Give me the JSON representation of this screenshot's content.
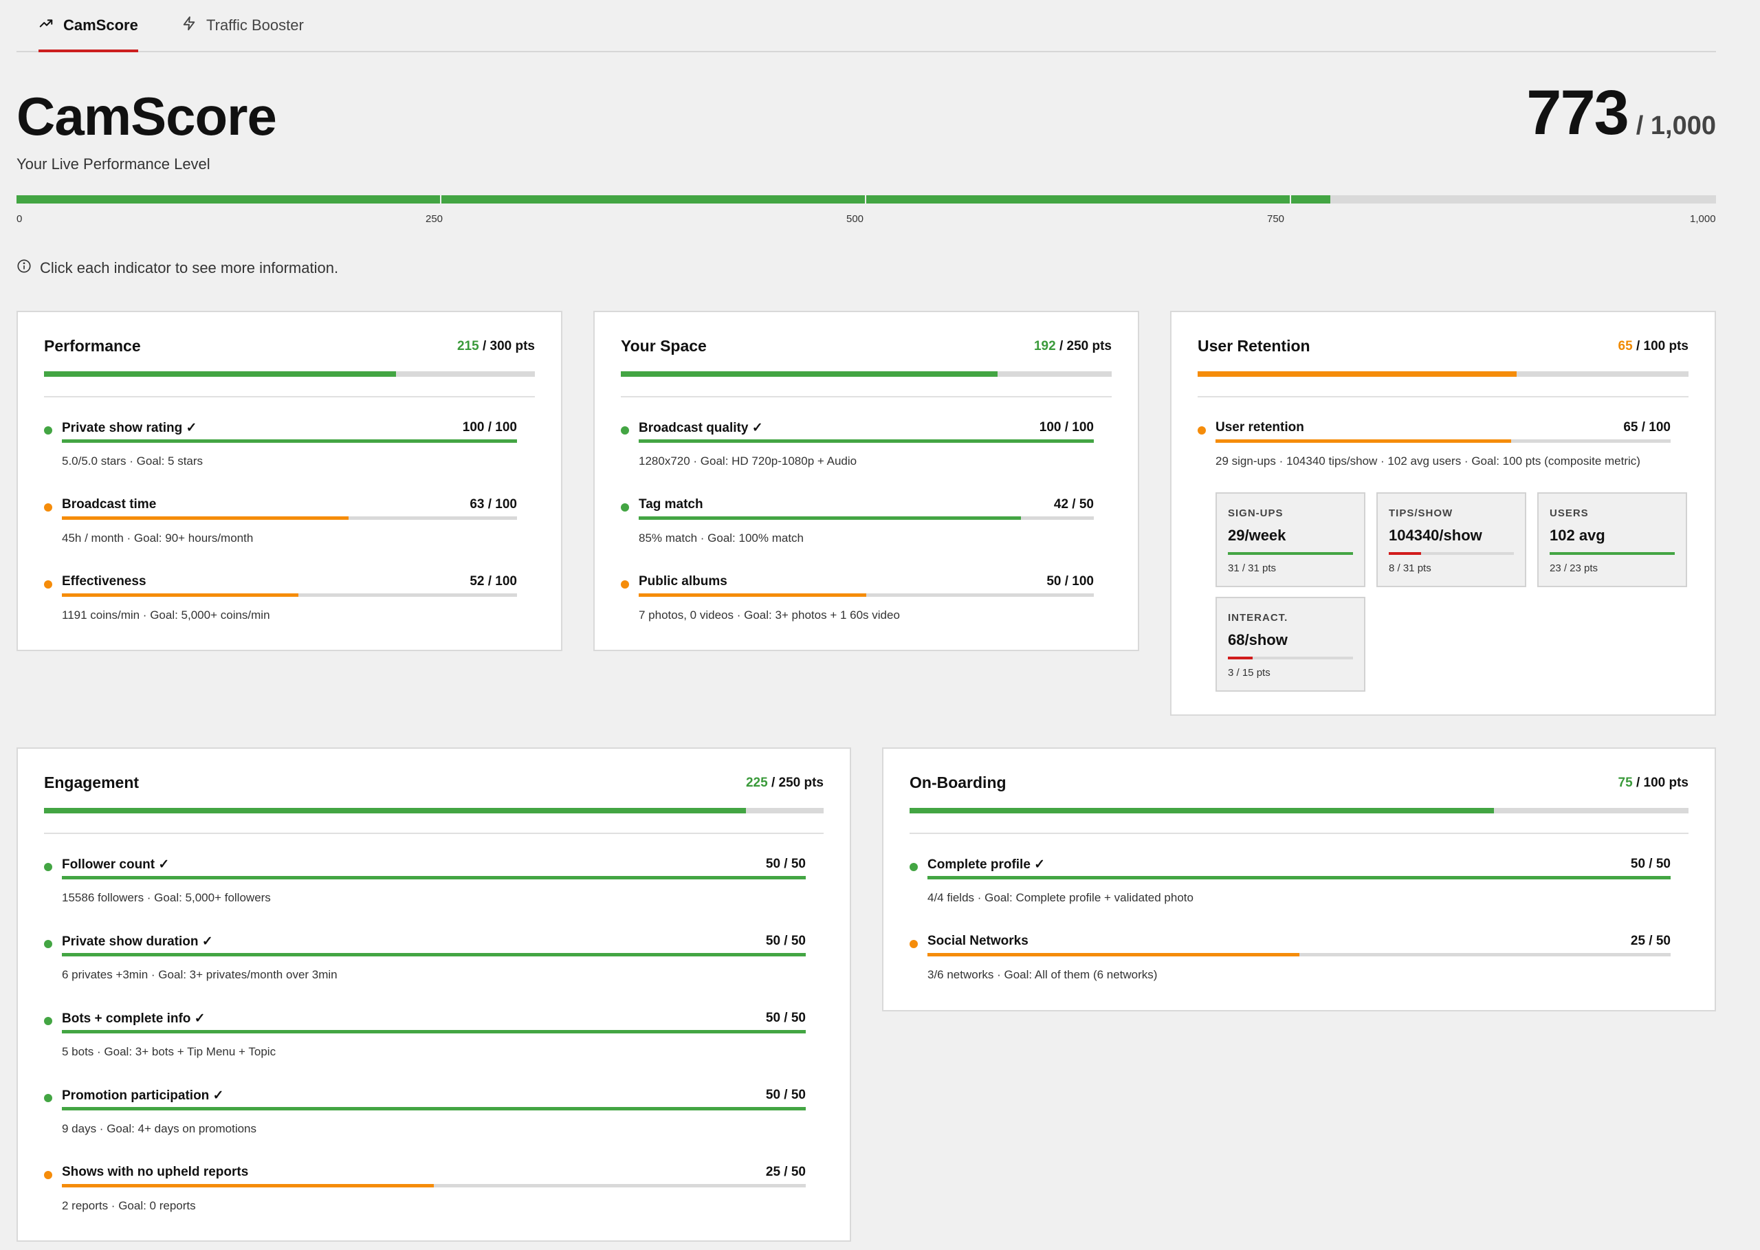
{
  "tabs": [
    {
      "label": "CamScore",
      "icon": "trending-up-icon",
      "active": true
    },
    {
      "label": "Traffic Booster",
      "icon": "lightning-icon",
      "active": false
    }
  ],
  "header": {
    "title": "CamScore",
    "subtitle": "Your Live Performance Level",
    "score": "773",
    "score_max": "/ 1,000",
    "score_value": 773,
    "score_total": 1000
  },
  "scale_labels": [
    "0",
    "250",
    "500",
    "750",
    "1,000"
  ],
  "info_text": "Click each indicator to see more information.",
  "colors": {
    "green": "#43a543",
    "orange": "#f58c0a",
    "red": "#d11b1b",
    "accent": "#cc1f1f"
  },
  "cards": {
    "performance": {
      "title": "Performance",
      "got": "215",
      "max": "/ 300 pts",
      "fraction": 0.7167,
      "items": [
        {
          "name": "Private show rating ✓",
          "value": "100 / 100",
          "desc": "5.0/5.0 stars · Goal: 5 stars",
          "fraction": 1.0,
          "status": "green"
        },
        {
          "name": "Broadcast time",
          "value": "63 / 100",
          "desc": "45h / month · Goal: 90+ hours/month",
          "fraction": 0.63,
          "status": "orange"
        },
        {
          "name": "Effectiveness",
          "value": "52 / 100",
          "desc": "1191 coins/min · Goal: 5,000+ coins/min",
          "fraction": 0.52,
          "status": "orange"
        }
      ]
    },
    "space": {
      "title": "Your Space",
      "got": "192",
      "max": "/ 250 pts",
      "fraction": 0.768,
      "items": [
        {
          "name": "Broadcast quality ✓",
          "value": "100 / 100",
          "desc": "1280x720 · Goal: HD 720p-1080p + Audio",
          "fraction": 1.0,
          "status": "green"
        },
        {
          "name": "Tag match",
          "value": "42 / 50",
          "desc": "85% match · Goal: 100% match",
          "fraction": 0.84,
          "status": "green"
        },
        {
          "name": "Public albums",
          "value": "50 / 100",
          "desc": "7 photos, 0 videos · Goal: 3+ photos + 1 60s video",
          "fraction": 0.5,
          "status": "orange"
        }
      ]
    },
    "retention": {
      "title": "User Retention",
      "got": "65",
      "max": "/ 100 pts",
      "fraction": 0.65,
      "items": [
        {
          "name": "User retention",
          "value": "65 / 100",
          "desc": "29 sign-ups · 104340 tips/show · 102 avg users · Goal: 100 pts (composite metric)",
          "fraction": 0.65,
          "status": "orange"
        }
      ],
      "metrics": [
        {
          "label": "SIGN-UPS",
          "value": "29/week",
          "pts": "31 / 31 pts",
          "fraction": 1.0,
          "status": "green"
        },
        {
          "label": "TIPS/SHOW",
          "value": "104340/show",
          "pts": "8 / 31 pts",
          "fraction": 0.258,
          "status": "red"
        },
        {
          "label": "USERS",
          "value": "102 avg",
          "pts": "23 / 23 pts",
          "fraction": 1.0,
          "status": "green"
        },
        {
          "label": "INTERACT.",
          "value": "68/show",
          "pts": "3 / 15 pts",
          "fraction": 0.2,
          "status": "red"
        }
      ]
    },
    "engagement": {
      "title": "Engagement",
      "got": "225",
      "max": "/ 250 pts",
      "fraction": 0.9,
      "items": [
        {
          "name": "Follower count ✓",
          "value": "50 / 50",
          "desc": "15586 followers · Goal: 5,000+ followers",
          "fraction": 1.0,
          "status": "green"
        },
        {
          "name": "Private show duration ✓",
          "value": "50 / 50",
          "desc": "6 privates +3min · Goal: 3+ privates/month over 3min",
          "fraction": 1.0,
          "status": "green"
        },
        {
          "name": "Bots + complete info ✓",
          "value": "50 / 50",
          "desc": "5 bots · Goal: 3+ bots + Tip Menu + Topic",
          "fraction": 1.0,
          "status": "green"
        },
        {
          "name": "Promotion participation ✓",
          "value": "50 / 50",
          "desc": "9 days · Goal: 4+ days on promotions",
          "fraction": 1.0,
          "status": "green"
        },
        {
          "name": "Shows with no upheld reports",
          "value": "25 / 50",
          "desc": "2 reports · Goal: 0 reports",
          "fraction": 0.5,
          "status": "orange"
        }
      ]
    },
    "onboarding": {
      "title": "On-Boarding",
      "got": "75",
      "max": "/ 100 pts",
      "fraction": 0.75,
      "items": [
        {
          "name": "Complete profile ✓",
          "value": "50 / 50",
          "desc": "4/4 fields · Goal: Complete profile + validated photo",
          "fraction": 1.0,
          "status": "green"
        },
        {
          "name": "Social Networks",
          "value": "25 / 50",
          "desc": "3/6 networks · Goal: All of them (6 networks)",
          "fraction": 0.5,
          "status": "orange"
        }
      ]
    }
  }
}
